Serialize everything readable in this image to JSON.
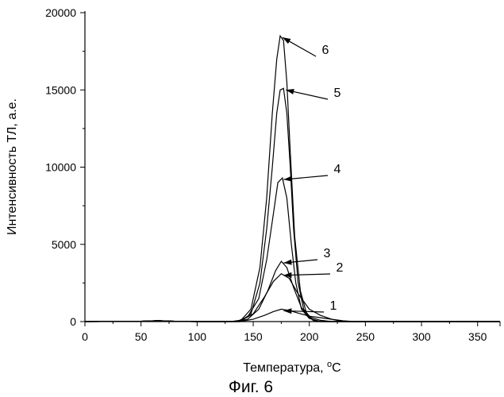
{
  "chart_data": {
    "type": "line",
    "title": "",
    "xlabel": "Температура, °C",
    "ylabel": "Интенсивность ТЛ, а.е.",
    "caption": "Фиг. 6",
    "xlim": [
      0,
      370
    ],
    "ylim": [
      0,
      20000
    ],
    "xticks": [
      0,
      50,
      100,
      150,
      200,
      250,
      300,
      350
    ],
    "yticks": [
      0,
      5000,
      10000,
      15000,
      20000
    ],
    "grid": false,
    "legend": "none",
    "series": [
      {
        "label": "1",
        "peak": [
          175,
          800
        ],
        "x": [
          0,
          50,
          65,
          80,
          100,
          120,
          140,
          150,
          160,
          168,
          175,
          182,
          190,
          200,
          210,
          220,
          230,
          240,
          370
        ],
        "y": [
          0,
          20,
          60,
          20,
          0,
          0,
          30,
          150,
          400,
          650,
          800,
          720,
          550,
          350,
          250,
          150,
          50,
          0,
          0
        ]
      },
      {
        "label": "2",
        "peak": [
          175,
          3100
        ],
        "x": [
          0,
          50,
          65,
          80,
          100,
          130,
          140,
          150,
          160,
          168,
          175,
          182,
          190,
          200,
          210,
          220,
          230,
          370
        ],
        "y": [
          0,
          20,
          60,
          20,
          0,
          0,
          100,
          500,
          1600,
          2600,
          3100,
          2800,
          1800,
          800,
          400,
          150,
          0,
          0
        ]
      },
      {
        "label": "3",
        "peak": [
          175,
          3900
        ],
        "x": [
          0,
          50,
          65,
          80,
          100,
          135,
          145,
          155,
          163,
          170,
          175,
          180,
          186,
          193,
          200,
          210,
          220,
          370
        ],
        "y": [
          0,
          20,
          60,
          20,
          0,
          0,
          150,
          800,
          2000,
          3300,
          3900,
          3500,
          2200,
          900,
          300,
          80,
          0,
          0
        ]
      },
      {
        "label": "4",
        "peak": [
          175,
          9300
        ],
        "x": [
          0,
          50,
          65,
          80,
          100,
          135,
          145,
          155,
          162,
          168,
          172,
          176,
          180,
          184,
          188,
          193,
          200,
          210,
          370
        ],
        "y": [
          0,
          20,
          60,
          20,
          0,
          0,
          300,
          1500,
          4000,
          7000,
          9000,
          9300,
          8000,
          5000,
          2500,
          800,
          200,
          0,
          0
        ]
      },
      {
        "label": "5",
        "peak": [
          177,
          15100
        ],
        "x": [
          0,
          50,
          65,
          80,
          100,
          138,
          148,
          156,
          162,
          167,
          171,
          174,
          177,
          180,
          183,
          186,
          190,
          195,
          203,
          210,
          370
        ],
        "y": [
          0,
          20,
          60,
          20,
          0,
          0,
          500,
          2500,
          6000,
          10000,
          13500,
          15000,
          15100,
          13500,
          10000,
          6000,
          2500,
          800,
          100,
          0,
          0
        ]
      },
      {
        "label": "6",
        "peak": [
          174,
          18500
        ],
        "x": [
          0,
          50,
          65,
          80,
          100,
          138,
          148,
          156,
          162,
          167,
          171,
          174,
          177,
          180,
          183,
          187,
          192,
          198,
          205,
          370
        ],
        "y": [
          0,
          20,
          60,
          20,
          0,
          0,
          800,
          3500,
          8000,
          13500,
          17000,
          18500,
          18200,
          15500,
          11000,
          5500,
          2000,
          400,
          0,
          0
        ]
      }
    ]
  }
}
